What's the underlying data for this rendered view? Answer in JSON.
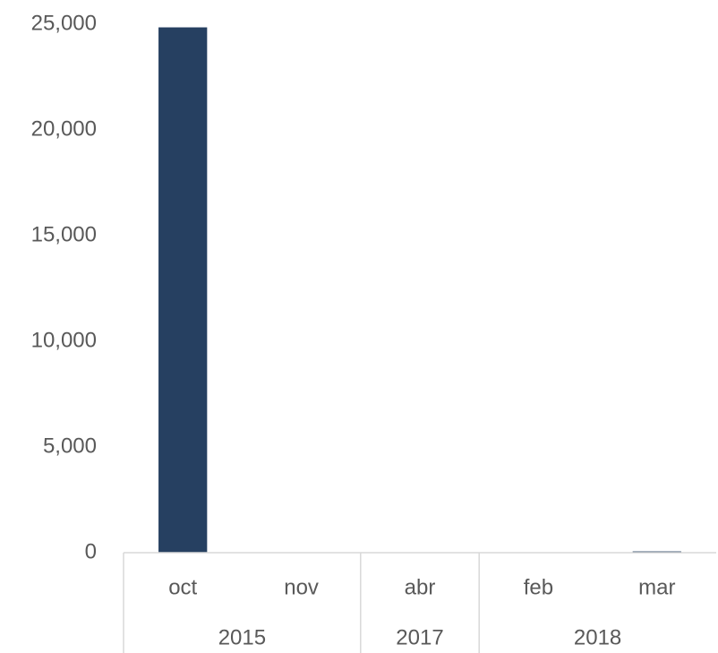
{
  "chart_data": {
    "type": "bar",
    "categories": [
      "oct",
      "nov",
      "abr",
      "feb",
      "mar"
    ],
    "groups": [
      {
        "label": "2015",
        "span": 2
      },
      {
        "label": "2017",
        "span": 1
      },
      {
        "label": "2018",
        "span": 2
      }
    ],
    "values": [
      24850,
      0,
      0,
      0,
      60
    ],
    "color": "#264061",
    "ylim": [
      0,
      25000
    ],
    "yticks": [
      0,
      {
        "value": 5000,
        "label": "5,000"
      },
      {
        "value": 10000,
        "label": "10,000"
      },
      {
        "value": 15000,
        "label": "15,000"
      },
      {
        "value": 20000,
        "label": "20,000"
      },
      {
        "value": 25000,
        "label": "25,000"
      }
    ],
    "grid": false
  }
}
